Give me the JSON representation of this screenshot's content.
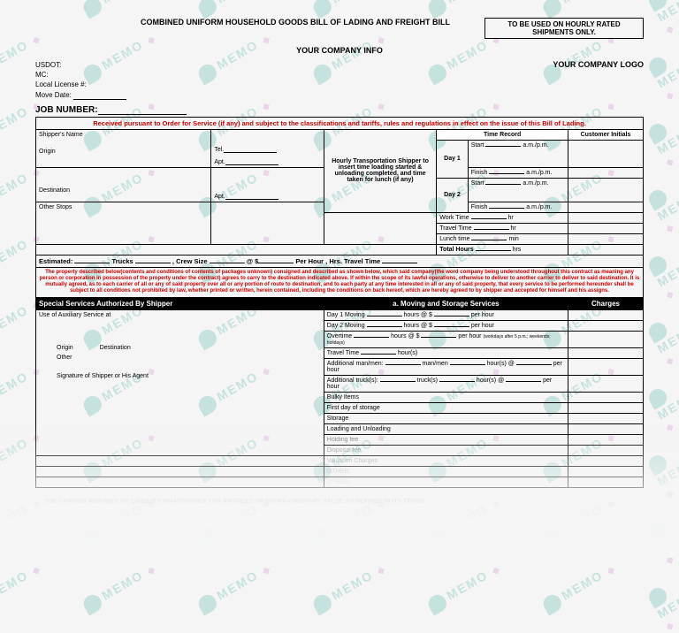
{
  "header": {
    "title": "COMBINED UNIFORM HOUSEHOLD GOODS BILL OF LADING AND FREIGHT BILL",
    "hourly_box": "TO BE USED ON HOURLY RATED SHIPMENTS ONLY.",
    "subtitle": "YOUR COMPANY INFO",
    "logo": "YOUR COMPANY LOGO"
  },
  "meta": {
    "usdot": "USDOT:",
    "mc": "MC:",
    "license": "Local License #:",
    "move_date": "Move Date:",
    "job": "JOB NUMBER:"
  },
  "received": "Received pursuant to Order for Service (if any) and subject to the classifications and tariffs, rules and regulations in effect on the issue of  this Bill of Lading.",
  "shipper": {
    "name": "Shipper's Name",
    "origin": "Origin",
    "tel": "Tel.",
    "apt": "Apt.",
    "dest": "Destination",
    "other": "Other Stops"
  },
  "hourly_text": "Hourly Transportation Shipper to insert time loading started & unloading completed, and time taken for lunch (if any)",
  "time": {
    "hdr": "Time Record",
    "cust": "Customer Initials",
    "day1": "Day 1",
    "day2": "Day 2",
    "start": "Start",
    "finish": "Finish",
    "ampm": "a.m./p.m.",
    "work": "Work Time",
    "travel": "Travel Time",
    "lunch": "Lunch time",
    "total": "Total Hours",
    "hr": "hr",
    "hrs": "hrs",
    "min": "min"
  },
  "est": {
    "label": "Estimated:",
    "trucks": "Trucks",
    "crew": "Crew Size",
    "at": "@",
    "dollar": "$",
    "perhr": "Per Hour",
    "hrstravel": "Hrs. Travel Time"
  },
  "legal": "The property described below(contents and conditions of contents of packages unknown) consigned and described as shown below, which said company(the word company being understood throughout this contract as meaning any person or corporation in possession of the property under the contract) agrees to carry to the destination indicated above. If within the scope of its lawful operations, otherwise to deliver to another carrier to deliver to said destination. It is mutually agreed, as to each carrier of all or any of said property over all or any portion of route to destination, and to each party at any time interested in all or any of said property, that every service to be performed hereunder shall be subject to all conditions not prohibited by law, whether printed or written, herein contained, including the conditions on back hereof, which are hereby agreed to by shipper and accepted for himself and his assigns.",
  "bar": {
    "special": "Special Services Authorized By Shipper",
    "moving": "a. Moving and Storage Services",
    "charges": "Charges"
  },
  "svc": {
    "aux": "Use of Auxiliary Service at",
    "origin": "Origin",
    "dest": "Destination",
    "other": "Other",
    "sig": "Signature of Shipper or His Agent",
    "day1m": "Day 1 Moving",
    "day2m": "Day 2 Moving",
    "overtime": "Overtime",
    "travel": "Travel Time",
    "addman": "Additional man/men:",
    "addtruck": "Additional truck(s):",
    "bulky": "Bulky Items",
    "firstday": "First day of storage",
    "storage": "Storage",
    "loading": "Loading and Unloading",
    "holding": "Holding fee",
    "disposal": "Disposal fee",
    "valuation": "Valuation Charges",
    "other_lbl": "OTHER:",
    "hours": "hours",
    "hours_at": "hours @ $",
    "perhour": "per hour",
    "workdays": "(workdays after 5 p.m.; weekends; holidays)",
    "hours_s": "hour(s)",
    "manmen": "man/men",
    "trucks": "truck(s)",
    "at": "@"
  },
  "carrier_note": "THE CARRIER ASSUMES NO LIABILITY WHATSOEVER FOR ARTICLES OF EXTRA-ORDINARY VALUE AS DEFINED IN ITS TERMS",
  "colors": {
    "red": "#c00",
    "teal": "#3aa89e",
    "black": "#000"
  }
}
